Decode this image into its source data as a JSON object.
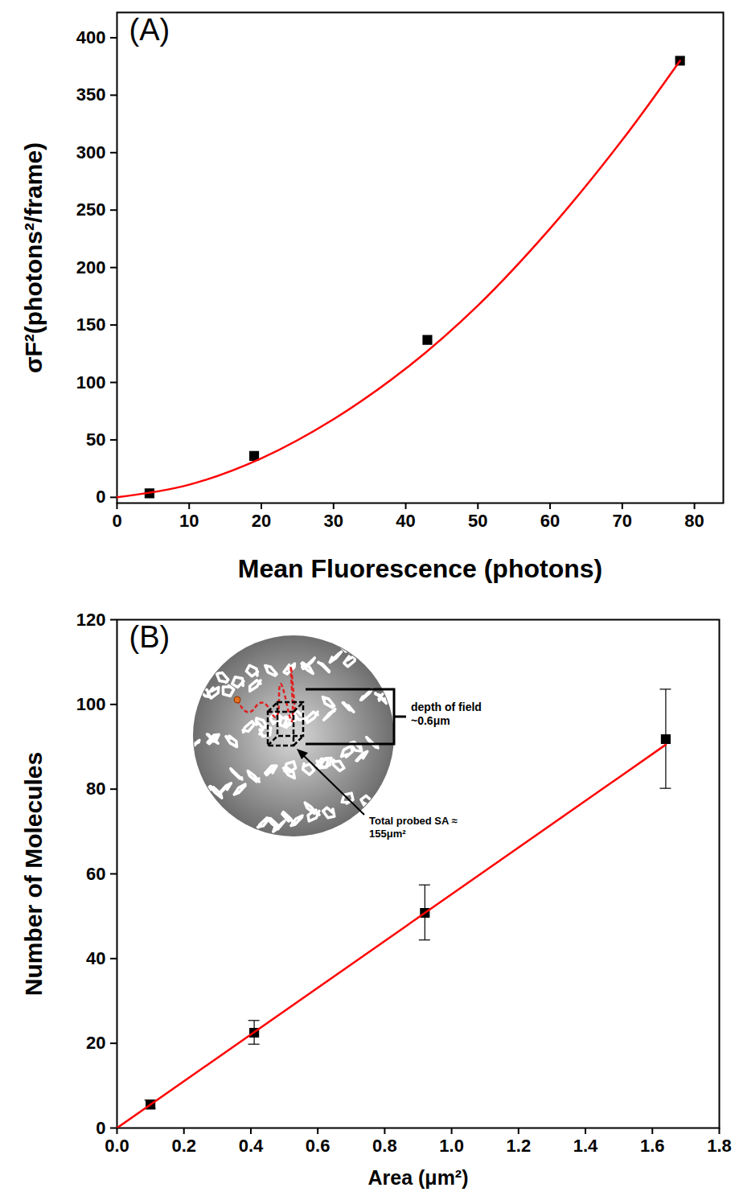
{
  "chart_data": [
    {
      "type": "scatter",
      "title": "(A)",
      "x_label": "Mean Fluorescence (photons)",
      "y_label": "σF²(photons²/frame)",
      "xlim": [
        0,
        84
      ],
      "ylim": [
        -5,
        422
      ],
      "xticks": [
        0,
        10,
        20,
        30,
        40,
        50,
        60,
        70,
        80
      ],
      "yticks": [
        0,
        50,
        100,
        150,
        200,
        250,
        300,
        350,
        400
      ],
      "series": [
        {
          "type": "scatter",
          "marker": "square",
          "color": "#000000",
          "x": [
            4.5,
            19,
            43,
            78
          ],
          "values": [
            3.5,
            36,
            137,
            380
          ]
        },
        {
          "type": "line",
          "line_style": "solid",
          "color": "#ff0000",
          "x": [
            0,
            10,
            20,
            30,
            40,
            50,
            60,
            70,
            78
          ],
          "values": [
            0,
            11,
            34,
            68,
            112,
            167,
            234,
            311,
            380
          ]
        }
      ]
    },
    {
      "type": "scatter",
      "title": "(B)",
      "x_label": "Area (μm²)",
      "y_label": "Number of Molecules",
      "annotations": [
        "depth of field ~0.6μm",
        "Total probed SA ≈ 155μm²"
      ],
      "xlim": [
        0,
        1.8
      ],
      "ylim": [
        0,
        120
      ],
      "xticks": [
        {
          "value": 0,
          "label": "0.0"
        },
        {
          "value": 0.2,
          "label": "0.2"
        },
        {
          "value": 0.4,
          "label": "0.4"
        },
        {
          "value": 0.6,
          "label": "0.6"
        },
        {
          "value": 0.8,
          "label": "0.8"
        },
        {
          "value": 1,
          "label": "1.0"
        },
        {
          "value": 1.2,
          "label": "1.2"
        },
        {
          "value": 1.4,
          "label": "1.4"
        },
        {
          "value": 1.6,
          "label": "1.6"
        },
        {
          "value": 1.8,
          "label": "1.8"
        }
      ],
      "yticks": [
        0,
        20,
        40,
        60,
        80,
        100,
        120
      ],
      "series": [
        {
          "type": "scatter",
          "marker": "square",
          "color": "#000000",
          "x": [
            0.1,
            0.41,
            0.92,
            1.64
          ],
          "values": [
            5.5,
            22.5,
            50.8,
            91.8
          ],
          "errors": [
            1,
            2.8,
            6.5,
            11.7
          ]
        },
        {
          "type": "line",
          "line_style": "solid",
          "color": "#ff0000",
          "x": [
            0,
            1.64
          ],
          "values": [
            0,
            90.5
          ]
        }
      ]
    }
  ]
}
